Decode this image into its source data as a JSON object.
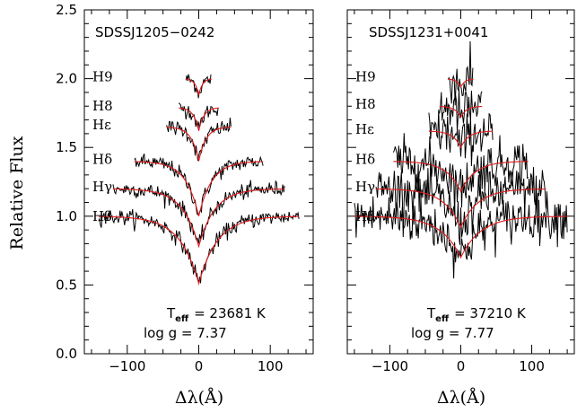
{
  "chart_data": {
    "type": "line",
    "ylabel": "Relative Flux",
    "ylim": [
      0.0,
      2.5
    ],
    "y_ticks": [
      "0.0",
      "0.5",
      "1.0",
      "1.5",
      "2.0",
      "2.5"
    ],
    "xlim": [
      -160,
      160
    ],
    "x_ticks": [
      "−100",
      "0",
      "100"
    ],
    "xlabel": "Δλ(Å)",
    "line_labels": [
      "H9",
      "H8",
      "Hε",
      "Hδ",
      "Hγ",
      "Hβ"
    ],
    "series_colors": {
      "observed": "#000000",
      "model": "#e31a1c"
    },
    "panels": [
      {
        "title": "SDSSJ1205−0242",
        "teff_label": "T",
        "teff_sub": "eff",
        "teff_value": "= 23681 K",
        "logg": "log g = 7.37",
        "noise": 0.028,
        "lines": [
          {
            "label": "H9",
            "halfwidth": 18,
            "continuum": 2.0,
            "depth": 0.12,
            "width": 5
          },
          {
            "label": "H8",
            "halfwidth": 28,
            "continuum": 1.79,
            "depth": 0.17,
            "width": 7
          },
          {
            "label": "Hε",
            "halfwidth": 45,
            "continuum": 1.65,
            "depth": 0.25,
            "width": 10
          },
          {
            "label": "Hδ",
            "halfwidth": 90,
            "continuum": 1.4,
            "depth": 0.4,
            "width": 18
          },
          {
            "label": "Hγ",
            "halfwidth": 120,
            "continuum": 1.2,
            "depth": 0.42,
            "width": 22
          },
          {
            "label": "Hβ",
            "halfwidth": 140,
            "continuum": 1.0,
            "depth": 0.49,
            "width": 26
          }
        ]
      },
      {
        "title": "SDSSJ1231+0041",
        "teff_label": "T",
        "teff_sub": "eff",
        "teff_value": "= 37210 K",
        "logg": "log g = 7.77",
        "noise": 0.085,
        "lines": [
          {
            "label": "H9",
            "halfwidth": 18,
            "continuum": 2.0,
            "depth": 0.06,
            "width": 6
          },
          {
            "label": "H8",
            "halfwidth": 30,
            "continuum": 1.8,
            "depth": 0.08,
            "width": 8
          },
          {
            "label": "Hε",
            "halfwidth": 45,
            "continuum": 1.62,
            "depth": 0.12,
            "width": 11
          },
          {
            "label": "Hδ",
            "halfwidth": 95,
            "continuum": 1.4,
            "depth": 0.22,
            "width": 20
          },
          {
            "label": "Hγ",
            "halfwidth": 120,
            "continuum": 1.2,
            "depth": 0.28,
            "width": 24
          },
          {
            "label": "Hβ",
            "halfwidth": 150,
            "continuum": 1.0,
            "depth": 0.3,
            "width": 28
          }
        ]
      }
    ]
  }
}
